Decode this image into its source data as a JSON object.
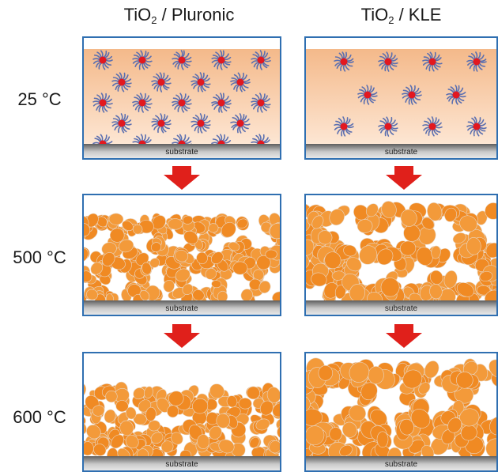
{
  "columns": [
    {
      "name": "TiO",
      "sub": "2",
      "rest": " / Pluronic"
    },
    {
      "name": "TiO",
      "sub": "2",
      "rest": " / KLE"
    }
  ],
  "rows": [
    {
      "temperature": "25 °C"
    },
    {
      "temperature": "500 °C"
    },
    {
      "temperature": "600 °C"
    }
  ],
  "substrate_label": "substrate",
  "colors": {
    "panel_border": "#2f6fb1",
    "film_top": "#f4b98a",
    "film_bottom": "#fde6d3",
    "micelle_core": "#e3181f",
    "micelle_arm": "#5b6fb0",
    "particle": "#f08a23",
    "arrow": "#e0201b",
    "substrate": "#8e8e8e"
  }
}
